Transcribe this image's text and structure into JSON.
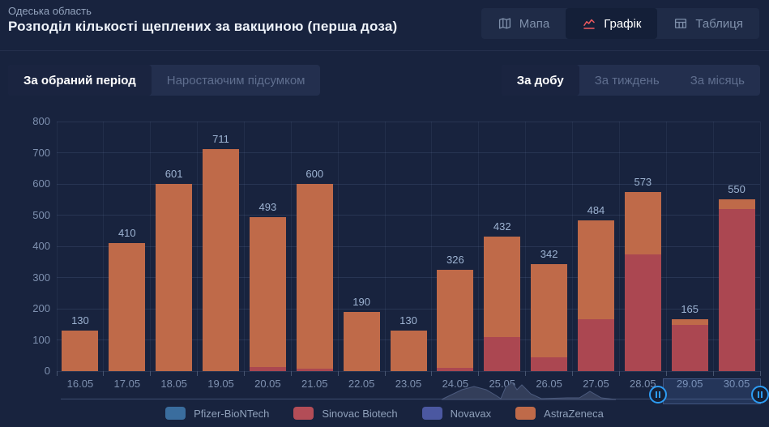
{
  "header": {
    "region": "Одеська область",
    "title": "Розподіл кількості щеплених за вакциною (перша доза)",
    "tabs": [
      {
        "label": "Мапа",
        "icon": "map-icon",
        "active": false
      },
      {
        "label": "Графік",
        "icon": "chart-icon",
        "active": true
      },
      {
        "label": "Таблиця",
        "icon": "table-icon",
        "active": false
      }
    ]
  },
  "toolbar": {
    "period_toggle": [
      {
        "label": "За обраний період",
        "active": true
      },
      {
        "label": "Наростаючим підсумком",
        "active": false
      }
    ],
    "granularity_toggle": [
      {
        "label": "За добу",
        "active": true
      },
      {
        "label": "За тиждень",
        "active": false
      },
      {
        "label": "За місяць",
        "active": false
      }
    ]
  },
  "chart_data": {
    "type": "bar",
    "stacked": true,
    "title": "Розподіл кількості щеплених за вакциною (перша доза)",
    "categories": [
      "16.05",
      "17.05",
      "18.05",
      "19.05",
      "20.05",
      "21.05",
      "22.05",
      "23.05",
      "24.05",
      "25.05",
      "26.05",
      "27.05",
      "28.05",
      "29.05",
      "30.05"
    ],
    "series": [
      {
        "name": "Sinovac Biotech",
        "color": "#ab4751",
        "values": [
          0,
          0,
          0,
          0,
          12,
          9,
          0,
          0,
          10,
          110,
          45,
          165,
          375,
          147,
          520
        ]
      },
      {
        "name": "AstraZeneca",
        "color": "#bf6a49",
        "values": [
          130,
          410,
          601,
          711,
          481,
          591,
          190,
          130,
          316,
          322,
          297,
          319,
          198,
          18,
          30
        ]
      }
    ],
    "totals": [
      130,
      410,
      601,
      711,
      493,
      600,
      190,
      130,
      326,
      432,
      342,
      484,
      573,
      165,
      550
    ],
    "ylim": [
      0,
      800
    ],
    "ytick_step": 100,
    "grid": true,
    "legend_position": "bottom"
  },
  "legend": [
    {
      "label": "Pfizer-BioNTech",
      "color": "#3a6d9e"
    },
    {
      "label": "Sinovac Biotech",
      "color": "#b34d57"
    },
    {
      "label": "Novavax",
      "color": "#4b58a1"
    },
    {
      "label": "AstraZeneca",
      "color": "#bf6a49"
    }
  ],
  "colors": {
    "background": "#18233e",
    "accent_red_icon": "#ee5a5f",
    "handle_blue": "#2d9cf4",
    "value_label": "#9db3d2",
    "axis_label": "#7e90af"
  }
}
